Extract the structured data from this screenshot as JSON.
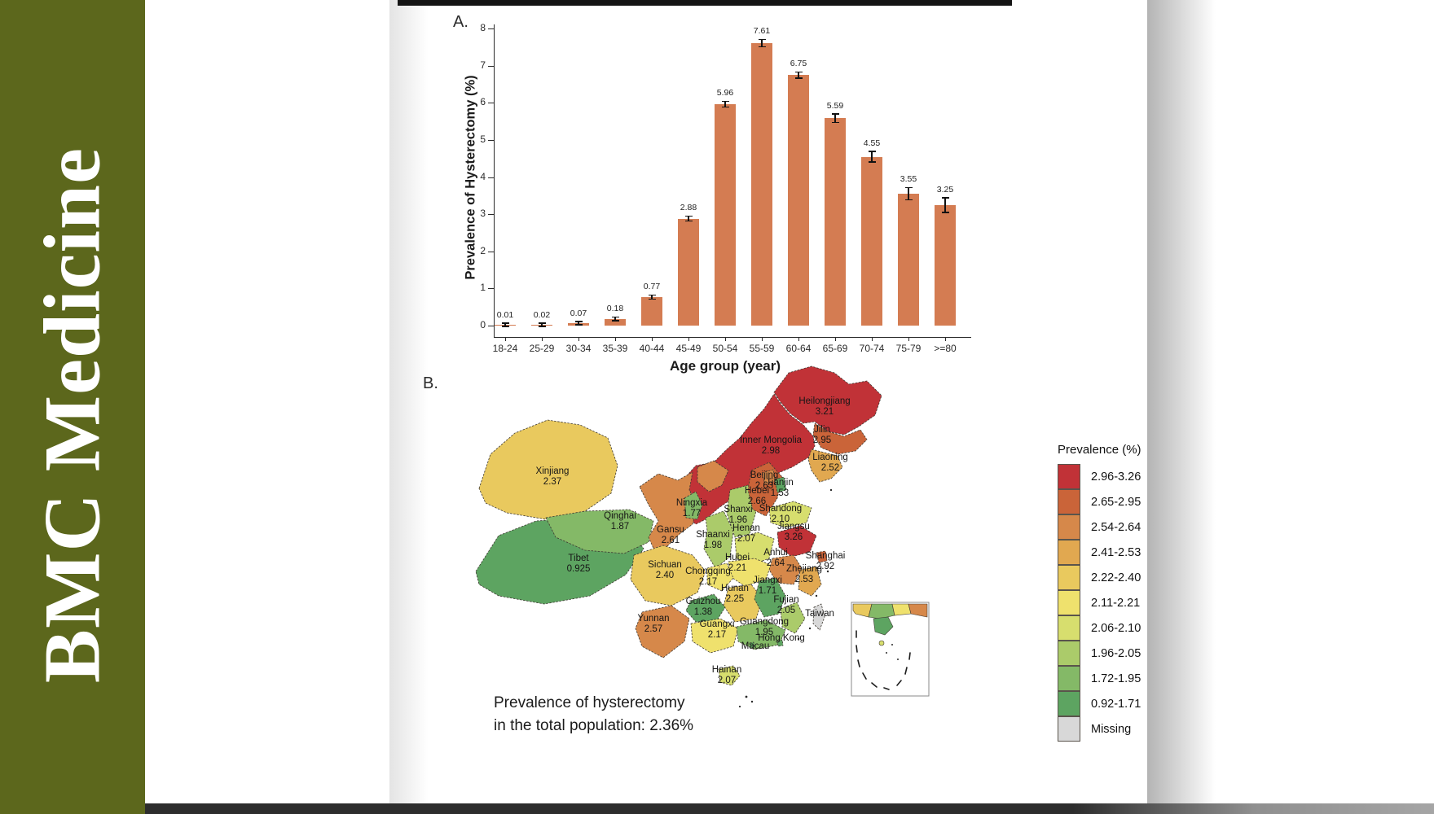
{
  "brand": {
    "journal": "BMC Medicine",
    "bg_color": "#5c671c"
  },
  "panel_a_label": "A.",
  "panel_b_label": "B.",
  "chart_data": [
    {
      "type": "bar",
      "title": "",
      "xlabel": "Age group (year)",
      "ylabel": "Prevalence of Hysterectomy (%)",
      "categories": [
        "18-24",
        "25-29",
        "30-34",
        "35-39",
        "40-44",
        "45-49",
        "50-54",
        "55-59",
        "60-64",
        "65-69",
        "70-74",
        "75-79",
        ">=80"
      ],
      "values": [
        0.01,
        0.02,
        0.07,
        0.18,
        0.77,
        2.88,
        5.96,
        7.61,
        6.75,
        5.59,
        4.55,
        3.55,
        3.25
      ],
      "errors": [
        0.01,
        0.01,
        0.02,
        0.03,
        0.04,
        0.05,
        0.06,
        0.08,
        0.07,
        0.1,
        0.13,
        0.15,
        0.18
      ],
      "ylim": [
        0,
        8
      ],
      "yticks": [
        0,
        1,
        2,
        3,
        4,
        5,
        6,
        7,
        8
      ],
      "bar_color": "#d47c52",
      "grid": false,
      "legend_position": "none"
    },
    {
      "type": "choropleth",
      "region": "China provinces",
      "legend_title": "Prevalence (%)",
      "annotation_lines": [
        "Prevalence of hysterectomy",
        "in the total population: 2.36%"
      ],
      "classes": [
        {
          "range": "2.96-3.26",
          "color": "#c13237"
        },
        {
          "range": "2.65-2.95",
          "color": "#ca6439"
        },
        {
          "range": "2.54-2.64",
          "color": "#d6884a"
        },
        {
          "range": "2.41-2.53",
          "color": "#e1a850"
        },
        {
          "range": "2.22-2.40",
          "color": "#e9c95e"
        },
        {
          "range": "2.11-2.21",
          "color": "#efe16d"
        },
        {
          "range": "2.06-2.10",
          "color": "#d7de6e"
        },
        {
          "range": "1.96-2.05",
          "color": "#abcb6a"
        },
        {
          "range": "1.72-1.95",
          "color": "#84b967"
        },
        {
          "range": "0.92-1.71",
          "color": "#5da461"
        },
        {
          "range": "Missing",
          "color": "#d8d8d8"
        }
      ],
      "provinces": [
        {
          "id": "heilongjiang",
          "name": "Heilongjiang",
          "value": "3.21",
          "cls": 0
        },
        {
          "id": "innermongolia",
          "name": "Inner Mongolia",
          "value": "2.98",
          "cls": 0
        },
        {
          "id": "jiangsu",
          "name": "Jiangsu",
          "value": "3.26",
          "cls": 0
        },
        {
          "id": "jilin",
          "name": "Jilin",
          "value": "2.95",
          "cls": 1
        },
        {
          "id": "hebei",
          "name": "Hebei",
          "value": "2.66",
          "cls": 1
        },
        {
          "id": "shanghai",
          "name": "Shanghai",
          "value": "2.92",
          "cls": 1
        },
        {
          "id": "beijing",
          "name": "Beijing",
          "value": "2.63",
          "cls": 2
        },
        {
          "id": "gansu",
          "name": "Gansu",
          "value": "2.61",
          "cls": 2
        },
        {
          "id": "anhui",
          "name": "Anhui",
          "value": "2.64",
          "cls": 2
        },
        {
          "id": "yunnan",
          "name": "Yunnan",
          "value": "2.57",
          "cls": 2
        },
        {
          "id": "liaoning",
          "name": "Liaoning",
          "value": "2.52",
          "cls": 3
        },
        {
          "id": "zhejiang",
          "name": "Zhejiang",
          "value": "2.53",
          "cls": 3
        },
        {
          "id": "xinjiang",
          "name": "Xinjiang",
          "value": "2.37",
          "cls": 4
        },
        {
          "id": "sichuan",
          "name": "Sichuan",
          "value": "2.40",
          "cls": 4
        },
        {
          "id": "hunan",
          "name": "Hunan",
          "value": "2.25",
          "cls": 4
        },
        {
          "id": "chongqing",
          "name": "Chongqing",
          "value": "2.17",
          "cls": 5
        },
        {
          "id": "hubei",
          "name": "Hubei",
          "value": "2.21",
          "cls": 5
        },
        {
          "id": "guangxi",
          "name": "Guangxi",
          "value": "2.17",
          "cls": 5
        },
        {
          "id": "shandong",
          "name": "Shandong",
          "value": "2.10",
          "cls": 6
        },
        {
          "id": "henan",
          "name": "Henan",
          "value": "2.07",
          "cls": 6
        },
        {
          "id": "hainan",
          "name": "Hainan",
          "value": "2.07",
          "cls": 6
        },
        {
          "id": "shanxi",
          "name": "Shanxi",
          "value": "1.96",
          "cls": 7
        },
        {
          "id": "shaanxi",
          "name": "Shaanxi",
          "value": "1.98",
          "cls": 7
        },
        {
          "id": "fujian",
          "name": "Fujian",
          "value": "2.05",
          "cls": 7
        },
        {
          "id": "qinghai",
          "name": "Qinghai",
          "value": "1.87",
          "cls": 8
        },
        {
          "id": "ningxia",
          "name": "Ningxia",
          "value": "1.77",
          "cls": 8
        },
        {
          "id": "guangdong",
          "name": "Guangdong",
          "value": "1.95",
          "cls": 8
        },
        {
          "id": "tibet",
          "name": "Tibet",
          "value": "0.925",
          "cls": 9
        },
        {
          "id": "tianjin",
          "name": "Tianjin",
          "value": "1.53",
          "cls": 9
        },
        {
          "id": "jiangxi",
          "name": "Jiangxi",
          "value": "1.71",
          "cls": 9
        },
        {
          "id": "guizhou",
          "name": "Guizhou",
          "value": "1.38",
          "cls": 9
        },
        {
          "id": "taiwan",
          "name": "Taiwan",
          "value": "",
          "cls": 10
        },
        {
          "id": "hongkong",
          "name": "Hong Kong",
          "value": "",
          "cls": 9
        },
        {
          "id": "macau",
          "name": "Macau",
          "value": "",
          "cls": 9
        }
      ]
    }
  ]
}
